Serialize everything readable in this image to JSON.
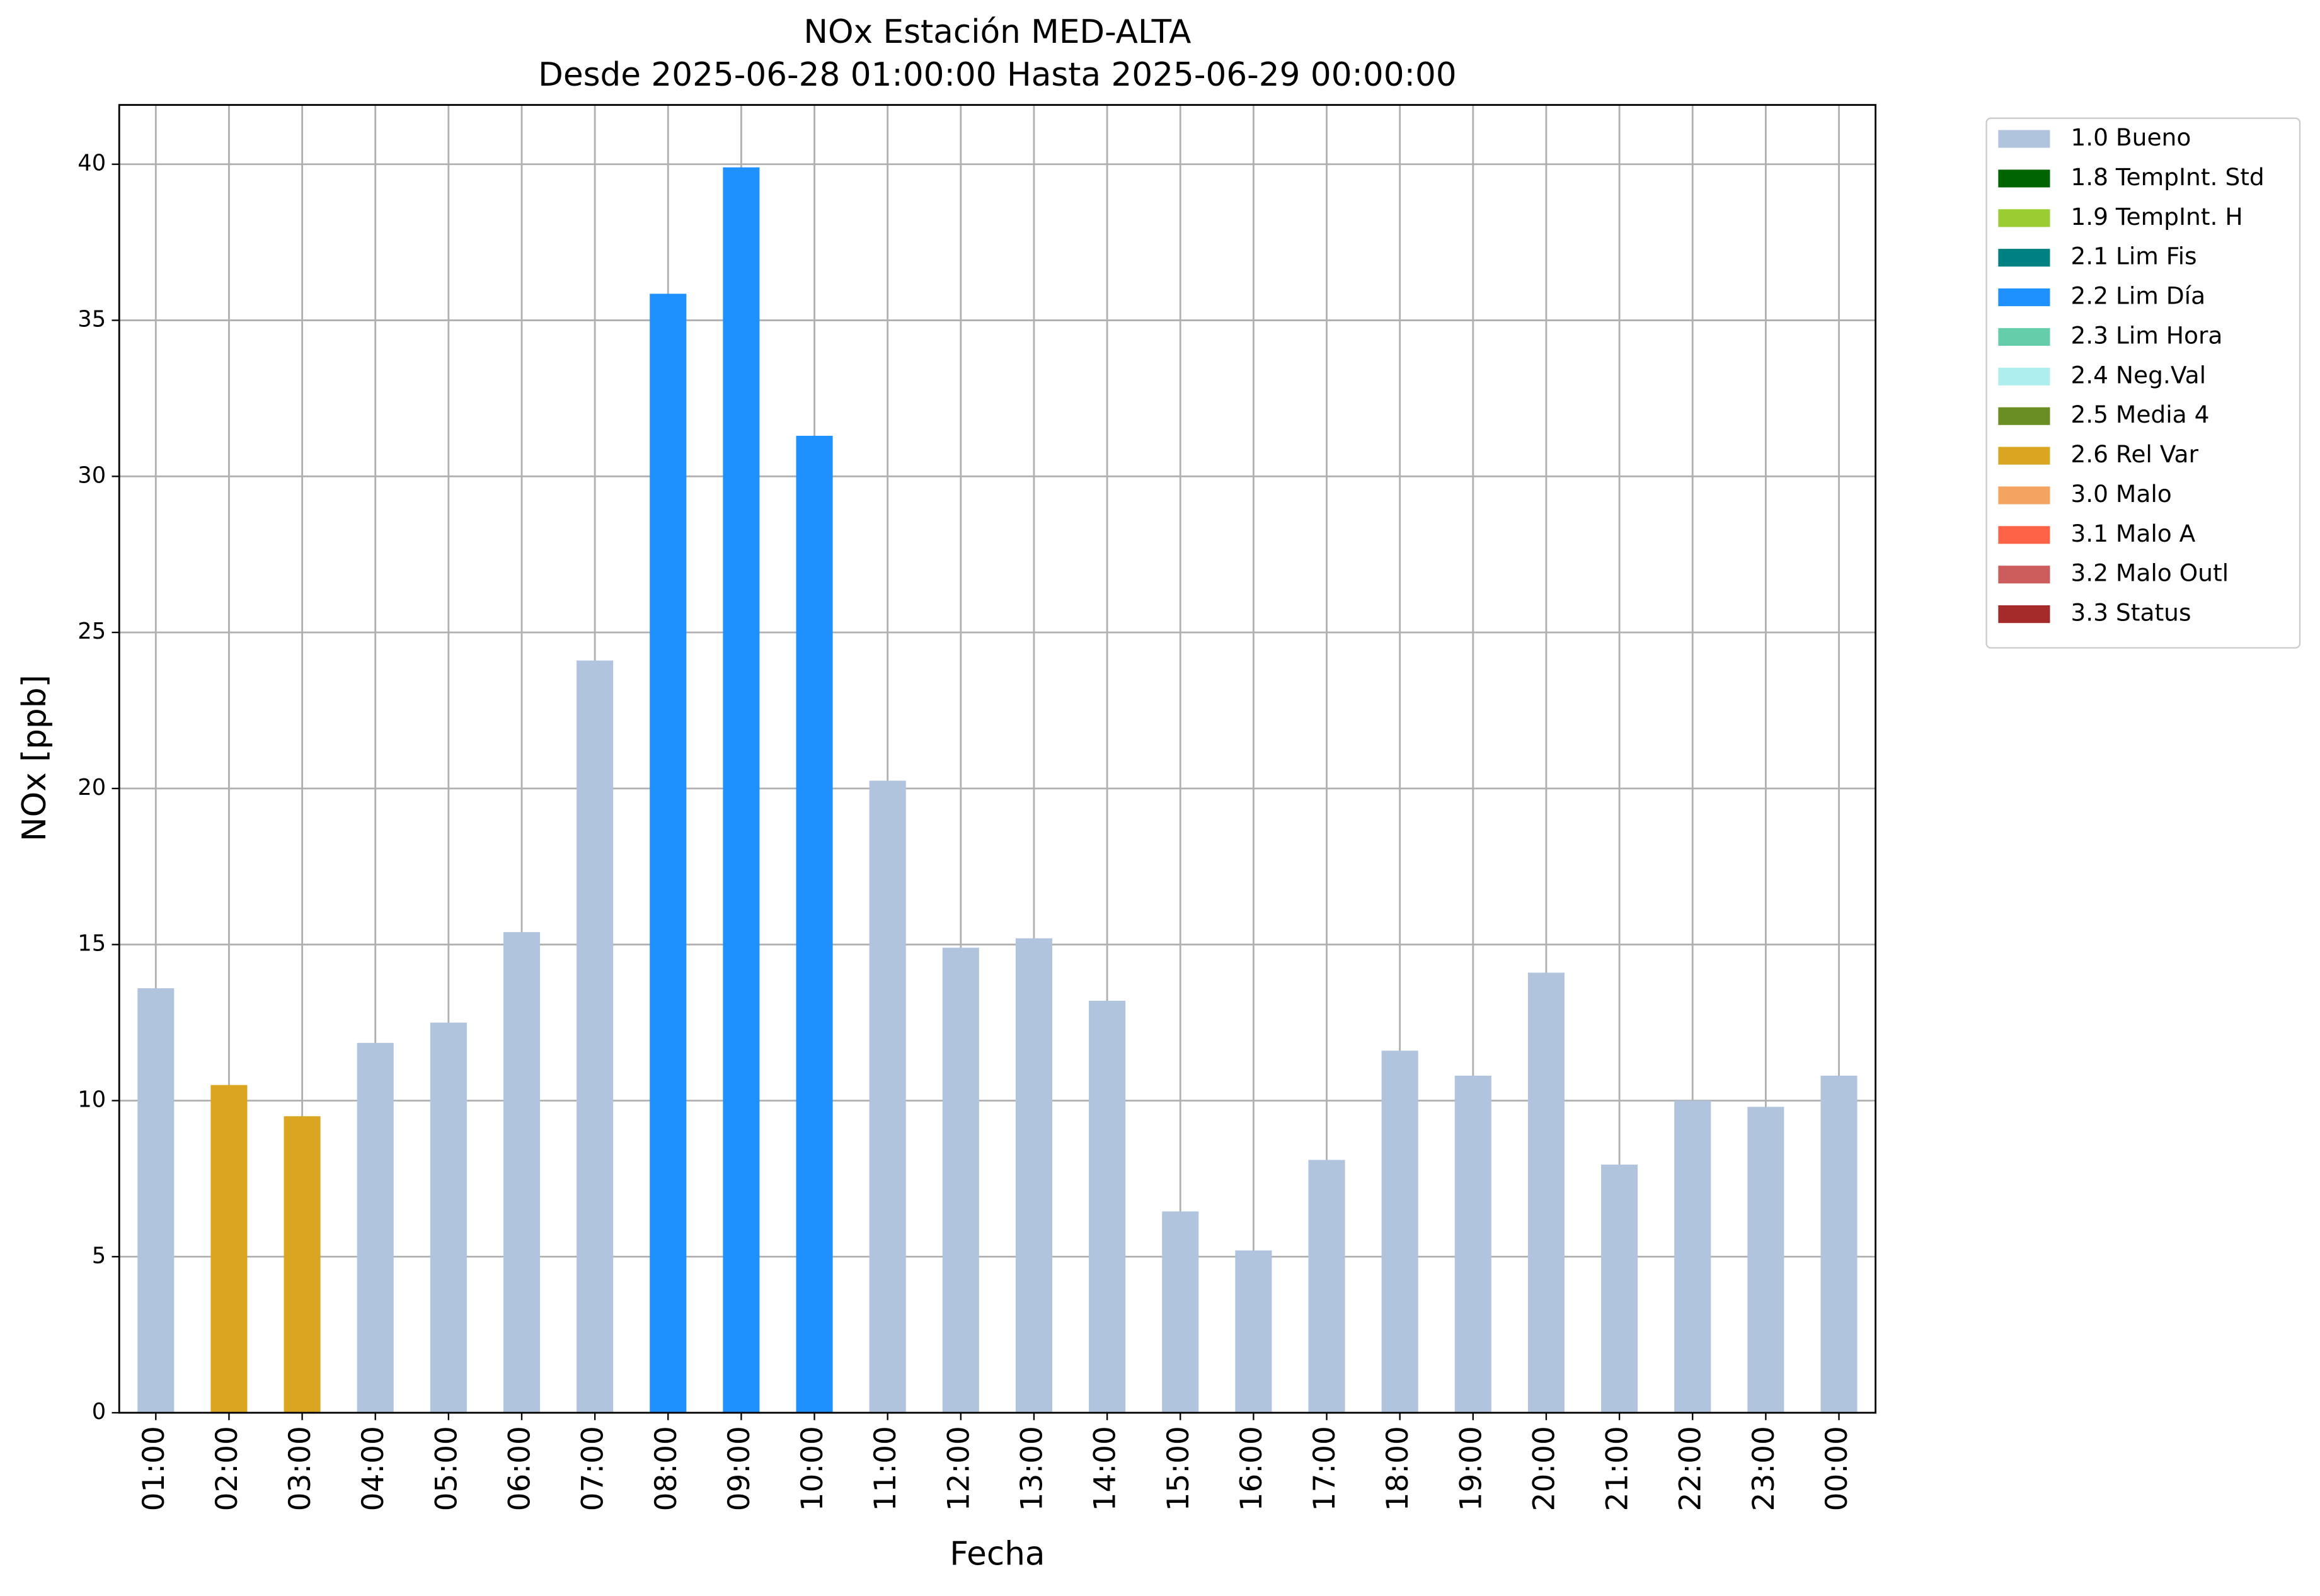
{
  "chart_data": {
    "type": "bar",
    "stacked": true,
    "title": "NOx Estación MED-ALTA",
    "subtitle": "Desde 2025-06-28 01:00:00 Hasta 2025-06-29 00:00:00",
    "xlabel": "Fecha",
    "ylabel": "NOx [ppb]",
    "categories": [
      "01:00",
      "02:00",
      "03:00",
      "04:00",
      "05:00",
      "06:00",
      "07:00",
      "08:00",
      "09:00",
      "10:00",
      "11:00",
      "12:00",
      "13:00",
      "14:00",
      "15:00",
      "16:00",
      "17:00",
      "18:00",
      "19:00",
      "20:00",
      "21:00",
      "22:00",
      "23:00",
      "00:00"
    ],
    "series": [
      {
        "name": "1.0 Bueno",
        "color": "#b0c4de",
        "values": [
          13.6,
          null,
          null,
          11.85,
          12.5,
          15.4,
          24.1,
          null,
          null,
          null,
          20.25,
          14.9,
          15.2,
          13.2,
          6.45,
          5.2,
          8.1,
          11.6,
          10.8,
          14.1,
          7.95,
          10.0,
          9.8,
          10.8
        ]
      },
      {
        "name": "1.8 TempInt. Std",
        "color": "#006400",
        "values": [
          null,
          null,
          null,
          null,
          null,
          null,
          null,
          null,
          null,
          null,
          null,
          null,
          null,
          null,
          null,
          null,
          null,
          null,
          null,
          null,
          null,
          null,
          null,
          null
        ]
      },
      {
        "name": "1.9 TempInt. H",
        "color": "#9acd32",
        "values": [
          null,
          null,
          null,
          null,
          null,
          null,
          null,
          null,
          null,
          null,
          null,
          null,
          null,
          null,
          null,
          null,
          null,
          null,
          null,
          null,
          null,
          null,
          null,
          null
        ]
      },
      {
        "name": "2.1 Lim Fis",
        "color": "#008080",
        "values": [
          null,
          null,
          null,
          null,
          null,
          null,
          null,
          null,
          null,
          null,
          null,
          null,
          null,
          null,
          null,
          null,
          null,
          null,
          null,
          null,
          null,
          null,
          null,
          null
        ]
      },
      {
        "name": "2.2 Lim Día",
        "color": "#1e90ff",
        "values": [
          null,
          null,
          null,
          null,
          null,
          null,
          null,
          35.85,
          39.9,
          31.3,
          null,
          null,
          null,
          null,
          null,
          null,
          null,
          null,
          null,
          null,
          null,
          null,
          null,
          null
        ]
      },
      {
        "name": "2.3 Lim Hora",
        "color": "#66cdaa",
        "values": [
          null,
          null,
          null,
          null,
          null,
          null,
          null,
          null,
          null,
          null,
          null,
          null,
          null,
          null,
          null,
          null,
          null,
          null,
          null,
          null,
          null,
          null,
          null,
          null
        ]
      },
      {
        "name": "2.4 Neg.Val",
        "color": "#afeeee",
        "values": [
          null,
          null,
          null,
          null,
          null,
          null,
          null,
          null,
          null,
          null,
          null,
          null,
          null,
          null,
          null,
          null,
          null,
          null,
          null,
          null,
          null,
          null,
          null,
          null
        ]
      },
      {
        "name": "2.5 Media 4",
        "color": "#6b8e23",
        "values": [
          null,
          null,
          null,
          null,
          null,
          null,
          null,
          null,
          null,
          null,
          null,
          null,
          null,
          null,
          null,
          null,
          null,
          null,
          null,
          null,
          null,
          null,
          null,
          null
        ]
      },
      {
        "name": "2.6 Rel Var",
        "color": "#daa520",
        "values": [
          null,
          10.5,
          9.5,
          null,
          null,
          null,
          null,
          null,
          null,
          null,
          null,
          null,
          null,
          null,
          null,
          null,
          null,
          null,
          null,
          null,
          null,
          null,
          null,
          null
        ]
      },
      {
        "name": "3.0 Malo",
        "color": "#f4a460",
        "values": [
          null,
          null,
          null,
          null,
          null,
          null,
          null,
          null,
          null,
          null,
          null,
          null,
          null,
          null,
          null,
          null,
          null,
          null,
          null,
          null,
          null,
          null,
          null,
          null
        ]
      },
      {
        "name": "3.1 Malo A",
        "color": "#ff6347",
        "values": [
          null,
          null,
          null,
          null,
          null,
          null,
          null,
          null,
          null,
          null,
          null,
          null,
          null,
          null,
          null,
          null,
          null,
          null,
          null,
          null,
          null,
          null,
          null,
          null
        ]
      },
      {
        "name": "3.2 Malo Outl",
        "color": "#cd5c5c",
        "values": [
          null,
          null,
          null,
          null,
          null,
          null,
          null,
          null,
          null,
          null,
          null,
          null,
          null,
          null,
          null,
          null,
          null,
          null,
          null,
          null,
          null,
          null,
          null,
          null
        ]
      },
      {
        "name": "3.3 Status",
        "color": "#a52a2a",
        "values": [
          null,
          null,
          null,
          null,
          null,
          null,
          null,
          null,
          null,
          null,
          null,
          null,
          null,
          null,
          null,
          null,
          null,
          null,
          null,
          null,
          null,
          null,
          null,
          null
        ]
      }
    ],
    "ylim": [
      0,
      41.9
    ],
    "yticks": [
      0,
      5,
      10,
      15,
      20,
      25,
      30,
      35,
      40
    ],
    "grid": true,
    "legend": "outside-upper-right"
  }
}
